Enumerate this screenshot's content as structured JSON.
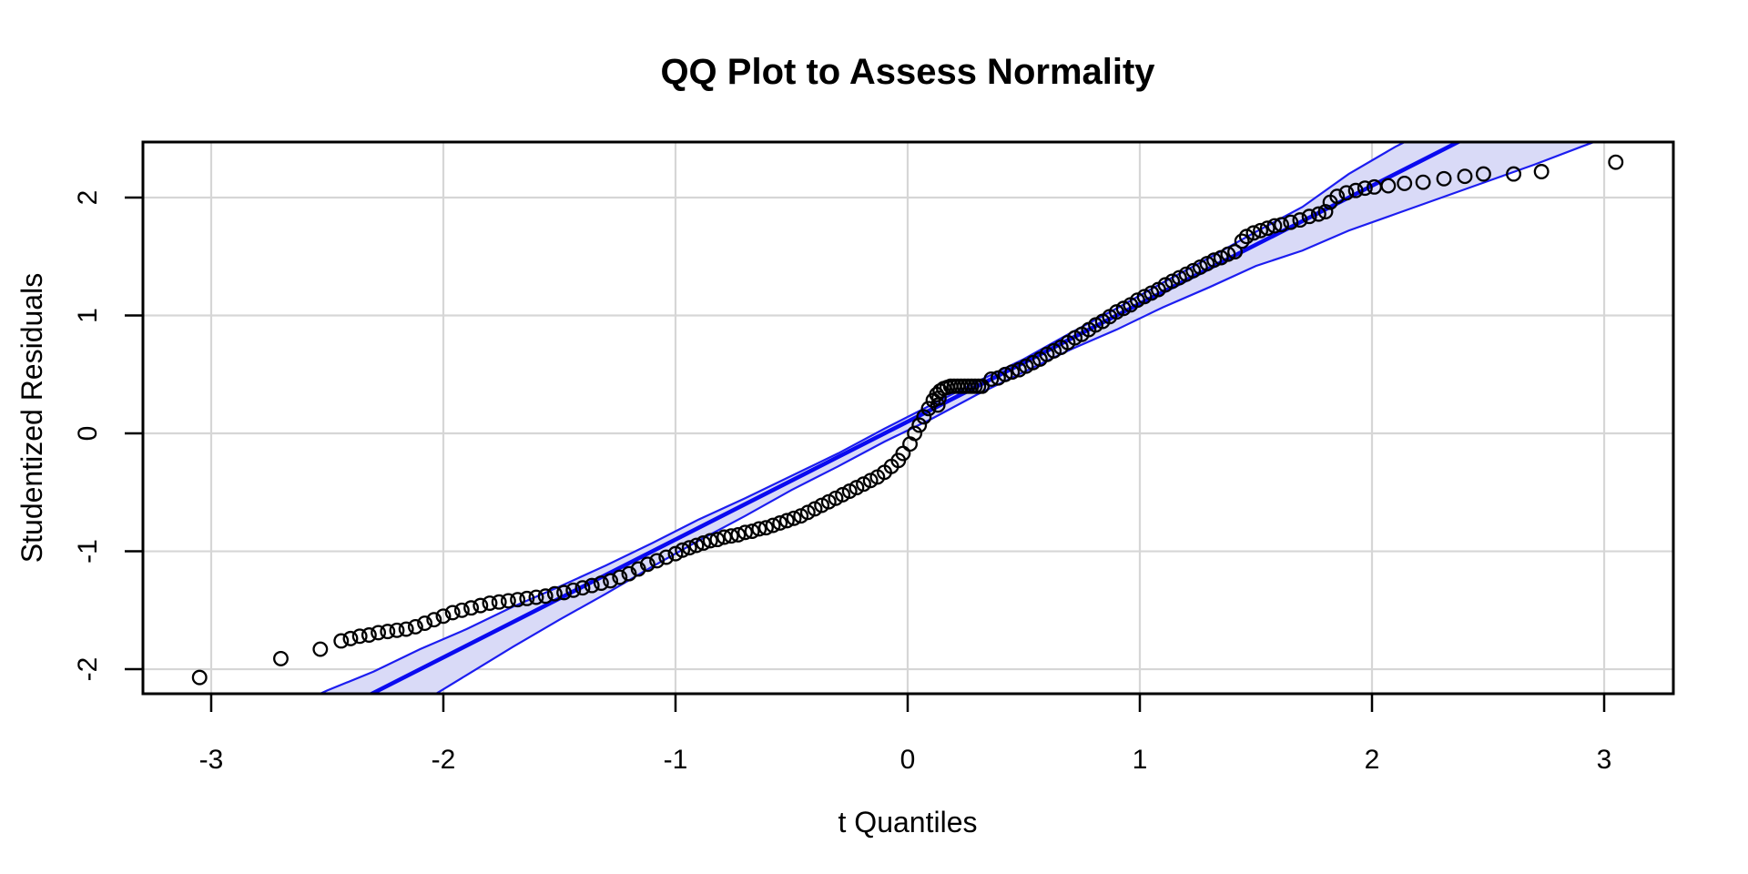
{
  "chart_data": {
    "type": "scatter",
    "title": "QQ Plot to Assess Normality",
    "xlabel": "t Quantiles",
    "ylabel": "Studentized Residuals",
    "axes": {
      "xlim": [
        -3.294,
        3.298
      ],
      "ylim": [
        -2.208,
        2.471
      ],
      "xticks": [
        -3,
        -2,
        -1,
        0,
        1,
        2,
        3
      ],
      "yticks": [
        -2,
        -1,
        0,
        1,
        2
      ],
      "grid": true,
      "legend": "none"
    },
    "reference_line": {
      "slope": 1.0,
      "intercept": 0.1
    },
    "confidence_band": {
      "x": [
        -3.3,
        -3.1,
        -2.9,
        -2.7,
        -2.5,
        -2.3,
        -2.1,
        -1.9,
        -1.7,
        -1.5,
        -1.3,
        -1.1,
        -0.9,
        -0.7,
        -0.5,
        -0.3,
        -0.1,
        0.1,
        0.3,
        0.5,
        0.7,
        0.9,
        1.1,
        1.3,
        1.5,
        1.7,
        1.9,
        2.1,
        2.3,
        2.5,
        2.7,
        2.9,
        3.05
      ],
      "upper": [
        -2.84,
        -2.69,
        -2.51,
        -2.36,
        -2.18,
        -2.02,
        -1.83,
        -1.66,
        -1.47,
        -1.3,
        -1.12,
        -0.93,
        -0.73,
        -0.55,
        -0.36,
        -0.17,
        0.04,
        0.24,
        0.44,
        0.63,
        0.85,
        1.06,
        1.28,
        1.49,
        1.71,
        1.92,
        2.2,
        2.43,
        2.63,
        2.86,
        3.09,
        3.32,
        3.5
      ],
      "lower": [
        -3.81,
        -3.55,
        -3.29,
        -3.03,
        -2.78,
        -2.52,
        -2.29,
        -2.05,
        -1.81,
        -1.58,
        -1.36,
        -1.13,
        -0.91,
        -0.7,
        -0.48,
        -0.28,
        -0.07,
        0.12,
        0.33,
        0.52,
        0.71,
        0.88,
        1.07,
        1.24,
        1.42,
        1.55,
        1.72,
        1.86,
        2.0,
        2.14,
        2.28,
        2.43,
        2.54
      ]
    },
    "points": [
      [
        -3.05,
        -2.07
      ],
      [
        -2.7,
        -1.91
      ],
      [
        -2.53,
        -1.83
      ],
      [
        -2.44,
        -1.76
      ],
      [
        -2.4,
        -1.74
      ],
      [
        -2.36,
        -1.72
      ],
      [
        -2.32,
        -1.71
      ],
      [
        -2.28,
        -1.69
      ],
      [
        -2.24,
        -1.68
      ],
      [
        -2.2,
        -1.67
      ],
      [
        -2.16,
        -1.66
      ],
      [
        -2.12,
        -1.64
      ],
      [
        -2.08,
        -1.61
      ],
      [
        -2.04,
        -1.58
      ],
      [
        -2.0,
        -1.55
      ],
      [
        -1.96,
        -1.52
      ],
      [
        -1.92,
        -1.5
      ],
      [
        -1.88,
        -1.48
      ],
      [
        -1.84,
        -1.46
      ],
      [
        -1.8,
        -1.44
      ],
      [
        -1.76,
        -1.43
      ],
      [
        -1.72,
        -1.42
      ],
      [
        -1.68,
        -1.41
      ],
      [
        -1.64,
        -1.4
      ],
      [
        -1.6,
        -1.39
      ],
      [
        -1.56,
        -1.38
      ],
      [
        -1.52,
        -1.36
      ],
      [
        -1.48,
        -1.35
      ],
      [
        -1.44,
        -1.33
      ],
      [
        -1.4,
        -1.31
      ],
      [
        -1.36,
        -1.29
      ],
      [
        -1.32,
        -1.27
      ],
      [
        -1.28,
        -1.25
      ],
      [
        -1.24,
        -1.22
      ],
      [
        -1.2,
        -1.19
      ],
      [
        -1.16,
        -1.15
      ],
      [
        -1.12,
        -1.11
      ],
      [
        -1.08,
        -1.08
      ],
      [
        -1.04,
        -1.05
      ],
      [
        -1.0,
        -1.02
      ],
      [
        -0.97,
        -0.99
      ],
      [
        -0.94,
        -0.97
      ],
      [
        -0.91,
        -0.95
      ],
      [
        -0.88,
        -0.93
      ],
      [
        -0.85,
        -0.91
      ],
      [
        -0.82,
        -0.9
      ],
      [
        -0.79,
        -0.88
      ],
      [
        -0.76,
        -0.87
      ],
      [
        -0.73,
        -0.86
      ],
      [
        -0.7,
        -0.84
      ],
      [
        -0.67,
        -0.83
      ],
      [
        -0.64,
        -0.81
      ],
      [
        -0.61,
        -0.8
      ],
      [
        -0.58,
        -0.78
      ],
      [
        -0.55,
        -0.76
      ],
      [
        -0.52,
        -0.74
      ],
      [
        -0.49,
        -0.72
      ],
      [
        -0.46,
        -0.7
      ],
      [
        -0.43,
        -0.67
      ],
      [
        -0.4,
        -0.64
      ],
      [
        -0.37,
        -0.61
      ],
      [
        -0.34,
        -0.58
      ],
      [
        -0.31,
        -0.55
      ],
      [
        -0.28,
        -0.52
      ],
      [
        -0.25,
        -0.49
      ],
      [
        -0.22,
        -0.46
      ],
      [
        -0.19,
        -0.43
      ],
      [
        -0.16,
        -0.4
      ],
      [
        -0.13,
        -0.37
      ],
      [
        -0.1,
        -0.33
      ],
      [
        -0.07,
        -0.28
      ],
      [
        -0.04,
        -0.23
      ],
      [
        -0.02,
        -0.17
      ],
      [
        0.01,
        -0.09
      ],
      [
        0.03,
        0.0
      ],
      [
        0.05,
        0.07
      ],
      [
        0.07,
        0.14
      ],
      [
        0.09,
        0.21
      ],
      [
        0.11,
        0.28
      ],
      [
        0.125,
        0.33
      ],
      [
        0.13,
        0.24
      ],
      [
        0.135,
        0.3
      ],
      [
        0.14,
        0.36
      ],
      [
        0.155,
        0.38
      ],
      [
        0.17,
        0.39
      ],
      [
        0.185,
        0.4
      ],
      [
        0.2,
        0.4
      ],
      [
        0.215,
        0.4
      ],
      [
        0.23,
        0.4
      ],
      [
        0.245,
        0.4
      ],
      [
        0.26,
        0.4
      ],
      [
        0.275,
        0.4
      ],
      [
        0.29,
        0.4
      ],
      [
        0.305,
        0.4
      ],
      [
        0.32,
        0.4
      ],
      [
        0.36,
        0.46
      ],
      [
        0.39,
        0.47
      ],
      [
        0.42,
        0.5
      ],
      [
        0.45,
        0.52
      ],
      [
        0.48,
        0.54
      ],
      [
        0.51,
        0.57
      ],
      [
        0.54,
        0.6
      ],
      [
        0.57,
        0.63
      ],
      [
        0.6,
        0.67
      ],
      [
        0.63,
        0.7
      ],
      [
        0.66,
        0.73
      ],
      [
        0.69,
        0.77
      ],
      [
        0.72,
        0.81
      ],
      [
        0.75,
        0.84
      ],
      [
        0.78,
        0.88
      ],
      [
        0.81,
        0.92
      ],
      [
        0.84,
        0.95
      ],
      [
        0.87,
        0.99
      ],
      [
        0.9,
        1.03
      ],
      [
        0.93,
        1.06
      ],
      [
        0.96,
        1.09
      ],
      [
        0.99,
        1.13
      ],
      [
        1.02,
        1.16
      ],
      [
        1.05,
        1.19
      ],
      [
        1.08,
        1.22
      ],
      [
        1.11,
        1.26
      ],
      [
        1.14,
        1.29
      ],
      [
        1.17,
        1.32
      ],
      [
        1.2,
        1.35
      ],
      [
        1.23,
        1.38
      ],
      [
        1.26,
        1.41
      ],
      [
        1.29,
        1.44
      ],
      [
        1.32,
        1.47
      ],
      [
        1.35,
        1.49
      ],
      [
        1.38,
        1.52
      ],
      [
        1.41,
        1.54
      ],
      [
        1.44,
        1.63
      ],
      [
        1.46,
        1.67
      ],
      [
        1.49,
        1.7
      ],
      [
        1.52,
        1.72
      ],
      [
        1.55,
        1.74
      ],
      [
        1.58,
        1.76
      ],
      [
        1.61,
        1.77
      ],
      [
        1.65,
        1.79
      ],
      [
        1.69,
        1.81
      ],
      [
        1.73,
        1.84
      ],
      [
        1.77,
        1.86
      ],
      [
        1.8,
        1.88
      ],
      [
        1.82,
        1.96
      ],
      [
        1.85,
        2.01
      ],
      [
        1.89,
        2.04
      ],
      [
        1.93,
        2.06
      ],
      [
        1.97,
        2.08
      ],
      [
        2.01,
        2.09
      ],
      [
        2.07,
        2.1
      ],
      [
        2.14,
        2.12
      ],
      [
        2.22,
        2.13
      ],
      [
        2.31,
        2.16
      ],
      [
        2.4,
        2.18
      ],
      [
        2.48,
        2.2
      ],
      [
        2.61,
        2.2
      ],
      [
        2.73,
        2.22
      ],
      [
        3.05,
        2.3
      ]
    ],
    "marker": {
      "shape": "open-circle",
      "radius_px": 7.3,
      "stroke_px": 2.3,
      "color": "#000000"
    },
    "colors": {
      "background": "#ffffff",
      "grid": "#d6d6d6",
      "axis": "#000000",
      "text": "#000000",
      "reference_line": "#0a0af0",
      "band_edge": "#1c1df0",
      "band_fill": "#d9daf7"
    }
  }
}
